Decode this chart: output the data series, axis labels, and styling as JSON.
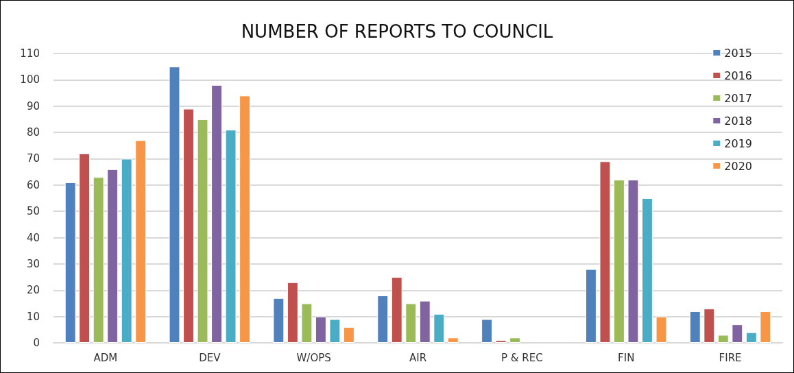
{
  "chart_data": {
    "type": "bar",
    "title": "NUMBER OF REPORTS TO COUNCIL",
    "categories": [
      "ADM",
      "DEV",
      "W/OPS",
      "AIR",
      "P & REC",
      "FIN",
      "FIRE"
    ],
    "series": [
      {
        "name": "2015",
        "color": "#4f81bd",
        "values": [
          61,
          105,
          17,
          18,
          9,
          28,
          12
        ]
      },
      {
        "name": "2016",
        "color": "#c0504d",
        "values": [
          72,
          89,
          23,
          25,
          1,
          69,
          13
        ]
      },
      {
        "name": "2017",
        "color": "#9bbb59",
        "values": [
          63,
          85,
          15,
          15,
          2,
          62,
          3
        ]
      },
      {
        "name": "2018",
        "color": "#8064a2",
        "values": [
          66,
          98,
          10,
          16,
          null,
          62,
          7
        ]
      },
      {
        "name": "2019",
        "color": "#4bacc6",
        "values": [
          70,
          81,
          9,
          11,
          null,
          55,
          4
        ]
      },
      {
        "name": "2020",
        "color": "#f79646",
        "values": [
          77,
          94,
          6,
          2,
          null,
          10,
          12
        ]
      }
    ],
    "ylim": [
      0,
      110
    ],
    "yticks": [
      0,
      10,
      20,
      30,
      40,
      50,
      60,
      70,
      80,
      90,
      100,
      110
    ],
    "grid": "y",
    "legend": "top right"
  }
}
